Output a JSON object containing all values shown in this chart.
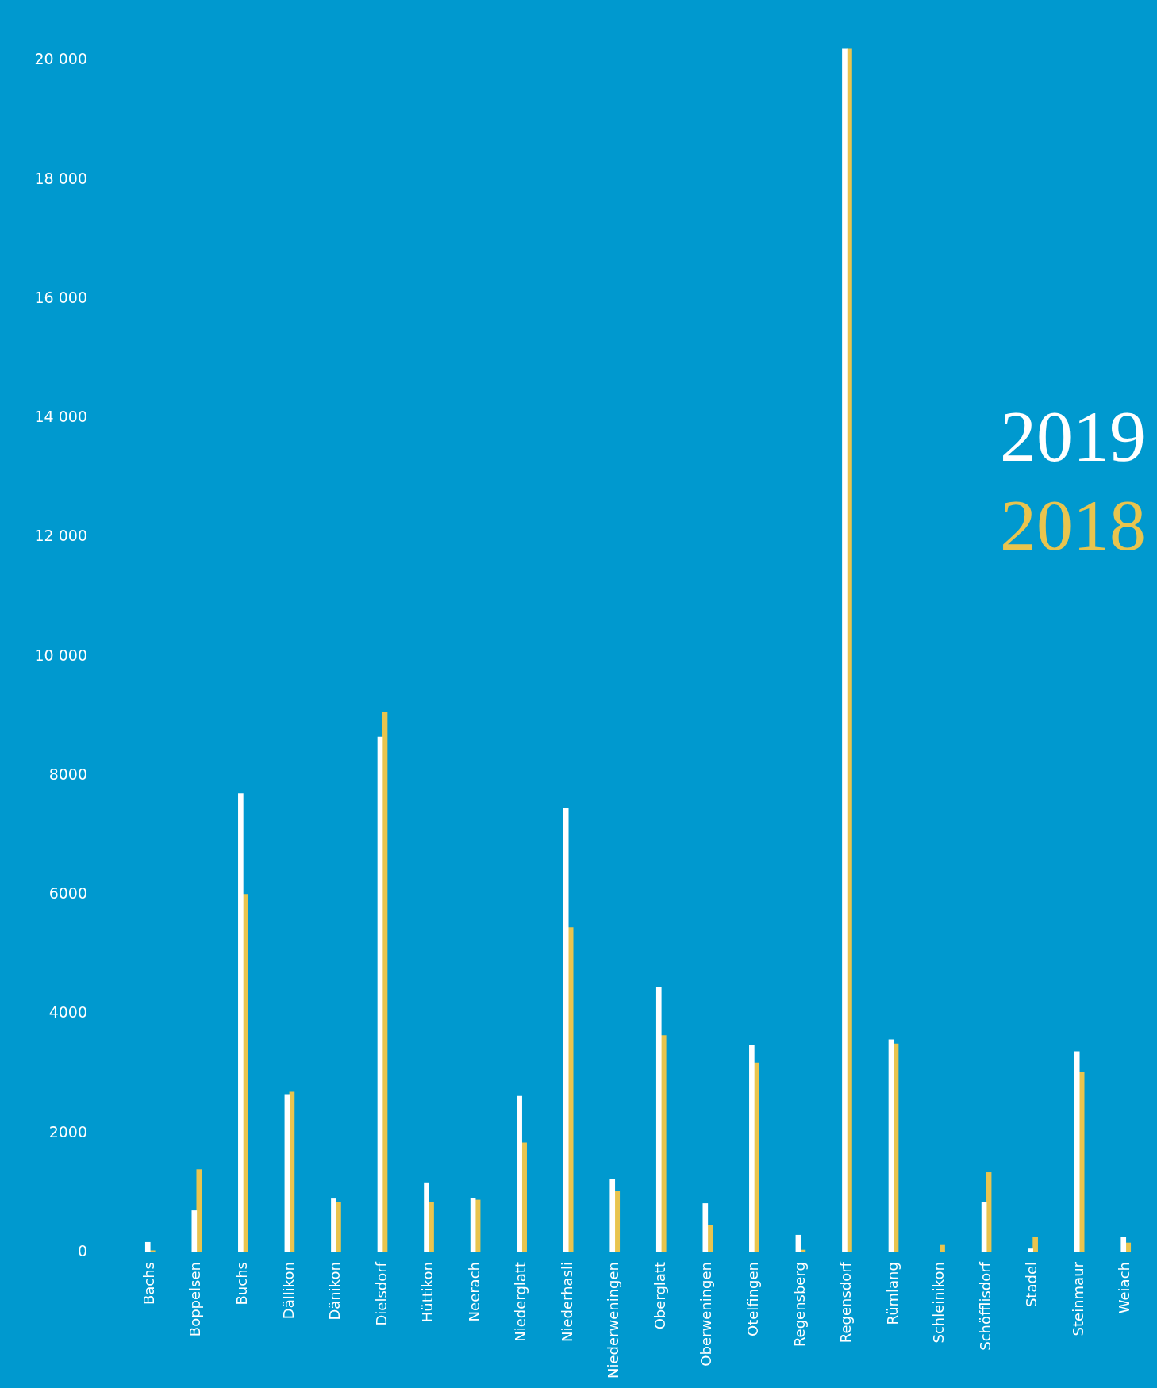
{
  "chart_data": {
    "type": "bar",
    "categories": [
      "Bachs",
      "Boppelsen",
      "Buchs",
      "Dällikon",
      "Dänikon",
      "Dielsdorf",
      "Hüttikon",
      "Neerach",
      "Niederglatt",
      "Niederhasli",
      "Niederweningen",
      "Oberglatt",
      "Oberweningen",
      "Otelfingen",
      "Regensberg",
      "Regensdorf",
      "Rümlang",
      "Schleinikon",
      "Schöfflisdorf",
      "Stadel",
      "Steinmaur",
      "Weiach"
    ],
    "series": [
      {
        "name": "2019",
        "color": "#ffffff",
        "values": [
          170,
          700,
          7700,
          2650,
          900,
          8650,
          1170,
          910,
          2620,
          7450,
          1230,
          4450,
          820,
          3470,
          290,
          20200,
          3570,
          0,
          840,
          60,
          3370,
          260
        ]
      },
      {
        "name": "2018",
        "color": "#e9c44e",
        "values": [
          30,
          1390,
          6010,
          2690,
          840,
          9060,
          840,
          880,
          1840,
          5450,
          1030,
          3640,
          460,
          3180,
          40,
          20200,
          3500,
          120,
          1340,
          260,
          3020,
          160
        ]
      }
    ],
    "ylim": [
      0,
      20200
    ],
    "yticks": [
      0,
      2000,
      4000,
      6000,
      8000,
      {
        "value": 10000,
        "label": "10 000"
      },
      {
        "value": 12000,
        "label": "12 000"
      },
      {
        "value": 14000,
        "label": "14 000"
      },
      {
        "value": 16000,
        "label": "16 000"
      },
      {
        "value": 18000,
        "label": "18 000"
      },
      {
        "value": 20000,
        "label": "20 000"
      }
    ],
    "grid": false,
    "legend": "right"
  }
}
